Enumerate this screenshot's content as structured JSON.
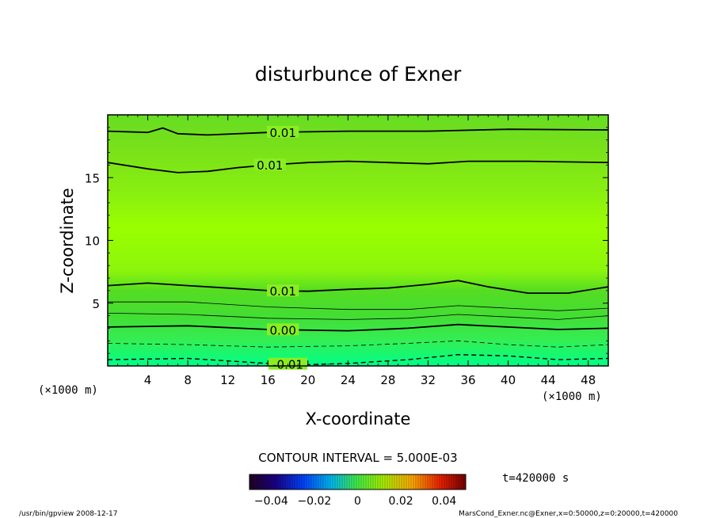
{
  "chart_data": {
    "type": "contour",
    "title": "disturbunce of Exner",
    "xlabel": "X-coordinate",
    "ylabel": "Z-coordinate",
    "x_unit_left": "(×1000 m)",
    "x_unit_right": "(×1000 m)",
    "xlim": [
      0,
      50
    ],
    "ylim": [
      0,
      20
    ],
    "x_ticks": [
      4,
      8,
      12,
      16,
      20,
      24,
      28,
      32,
      36,
      40,
      44,
      48
    ],
    "y_ticks": [
      5,
      10,
      15
    ],
    "contour_interval_text": "CONTOUR INTERVAL = 5.000E-03",
    "contours": [
      {
        "label": "0.01",
        "style": "solid",
        "label_x": 17.5,
        "points": [
          [
            0,
            18.7
          ],
          [
            4,
            18.6
          ],
          [
            5.5,
            18.95
          ],
          [
            7,
            18.5
          ],
          [
            10,
            18.4
          ],
          [
            16,
            18.6
          ],
          [
            24,
            18.7
          ],
          [
            32,
            18.7
          ],
          [
            40,
            18.85
          ],
          [
            50,
            18.8
          ]
        ]
      },
      {
        "label": "0.01",
        "style": "solid",
        "label_x": 16.2,
        "points": [
          [
            0,
            16.2
          ],
          [
            4,
            15.7
          ],
          [
            7,
            15.4
          ],
          [
            10,
            15.5
          ],
          [
            13,
            15.8
          ],
          [
            16,
            16.0
          ],
          [
            20,
            16.2
          ],
          [
            24,
            16.3
          ],
          [
            28,
            16.2
          ],
          [
            32,
            16.1
          ],
          [
            36,
            16.3
          ],
          [
            42,
            16.3
          ],
          [
            50,
            16.2
          ]
        ]
      },
      {
        "label": "0.01",
        "style": "solid",
        "label_x": 17.5,
        "points": [
          [
            0,
            6.4
          ],
          [
            4,
            6.6
          ],
          [
            8,
            6.4
          ],
          [
            12,
            6.2
          ],
          [
            16,
            6.0
          ],
          [
            20,
            5.95
          ],
          [
            24,
            6.1
          ],
          [
            28,
            6.2
          ],
          [
            32,
            6.5
          ],
          [
            35,
            6.8
          ],
          [
            38,
            6.3
          ],
          [
            42,
            5.8
          ],
          [
            46,
            5.8
          ],
          [
            50,
            6.3
          ]
        ]
      },
      {
        "label": "",
        "style": "thin",
        "label_x": null,
        "points": [
          [
            0,
            5.1
          ],
          [
            8,
            5.1
          ],
          [
            16,
            4.7
          ],
          [
            24,
            4.5
          ],
          [
            30,
            4.5
          ],
          [
            35,
            4.8
          ],
          [
            40,
            4.6
          ],
          [
            45,
            4.4
          ],
          [
            50,
            4.6
          ]
        ]
      },
      {
        "label": "",
        "style": "thin",
        "label_x": null,
        "points": [
          [
            0,
            4.2
          ],
          [
            8,
            4.1
          ],
          [
            16,
            3.8
          ],
          [
            24,
            3.7
          ],
          [
            30,
            3.8
          ],
          [
            35,
            4.1
          ],
          [
            40,
            3.9
          ],
          [
            45,
            3.7
          ],
          [
            50,
            4.0
          ]
        ]
      },
      {
        "label": "0.00",
        "style": "solid",
        "label_x": 17.5,
        "points": [
          [
            0,
            3.1
          ],
          [
            8,
            3.2
          ],
          [
            16,
            2.9
          ],
          [
            24,
            2.8
          ],
          [
            30,
            3.0
          ],
          [
            35,
            3.3
          ],
          [
            40,
            3.1
          ],
          [
            45,
            2.9
          ],
          [
            50,
            3.0
          ]
        ]
      },
      {
        "label": "",
        "style": "dashed",
        "label_x": null,
        "points": [
          [
            0,
            1.8
          ],
          [
            8,
            1.7
          ],
          [
            16,
            1.5
          ],
          [
            24,
            1.6
          ],
          [
            30,
            1.8
          ],
          [
            35,
            2.0
          ],
          [
            40,
            1.7
          ],
          [
            45,
            1.5
          ],
          [
            50,
            1.7
          ]
        ]
      },
      {
        "label": "-0.01",
        "style": "dashed",
        "label_x": 18.0,
        "points": [
          [
            0,
            0.5
          ],
          [
            8,
            0.6
          ],
          [
            16,
            0.2
          ],
          [
            20,
            0.1
          ],
          [
            24,
            0.2
          ],
          [
            30,
            0.5
          ],
          [
            35,
            0.9
          ],
          [
            40,
            0.8
          ],
          [
            45,
            0.5
          ],
          [
            50,
            0.6
          ]
        ]
      }
    ],
    "colorbar": {
      "range": [
        -0.05,
        0.05
      ],
      "tick_labels": [
        "−0.04",
        "−0.02",
        "0",
        "0.02",
        "0.04"
      ],
      "tick_values": [
        -0.04,
        -0.02,
        0,
        0.02,
        0.04
      ]
    },
    "colors": {
      "top_band": "#66dd22",
      "upper_band": "#88ee11",
      "middle_band": "#99ff00",
      "lower_band_1": "#44dd33",
      "lower_band_2": "#33ee55",
      "bottom_band": "#00ff88"
    }
  },
  "time_text": "t=420000 s",
  "footer_left": "/usr/bin/gpview   2008-12-17",
  "footer_right": "MarsCond_Exner.nc@Exner,x=0:50000,z=0:20000,t=420000"
}
